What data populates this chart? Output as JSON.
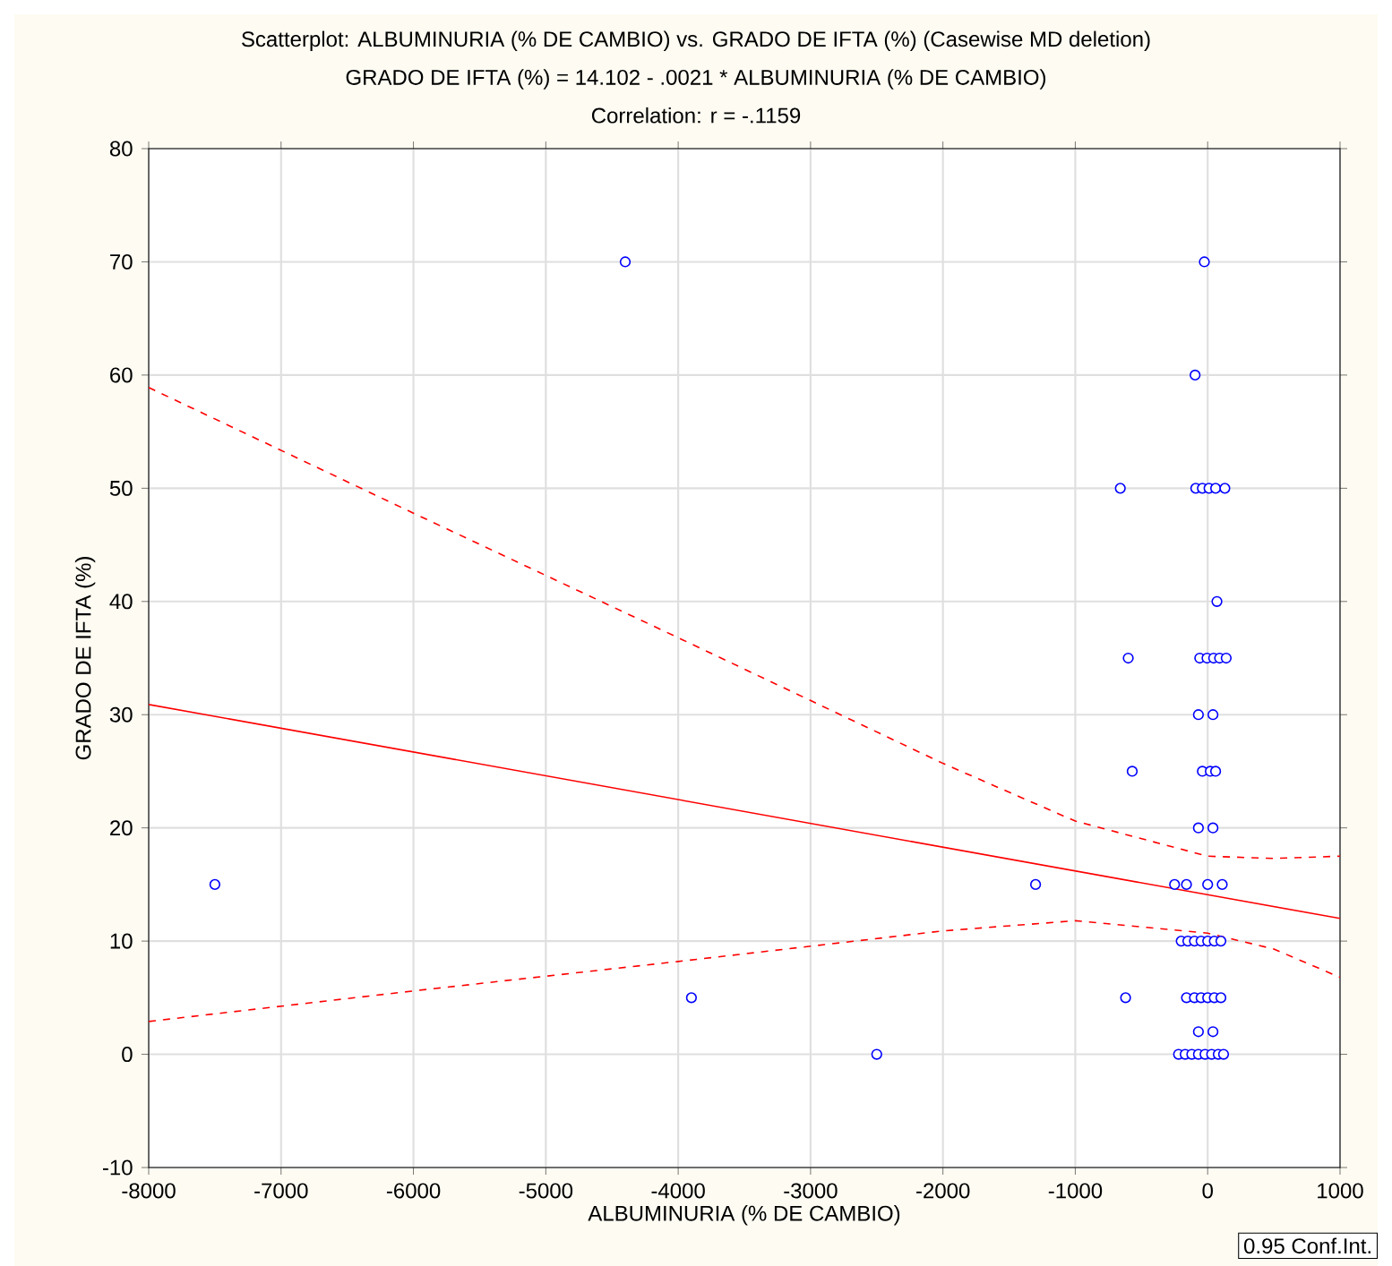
{
  "chart_data": {
    "type": "scatter",
    "title": "Scatterplot: ALBUMINURIA  (% DE CAMBIO) vs. GRADO DE IFTA (%) (Casewise MD deletion)",
    "subtitle": "GRADO DE IFTA (%) = 14.102 - .0021  * ALBUMINURIA  (% DE CAMBIO)",
    "xlabel": "ALBUMINURIA  (% DE CAMBIO)",
    "ylabel": "GRADO DE IFTA (%)",
    "annotations": [
      "Correlation: r = -.1159",
      "0.95 Conf.Int."
    ],
    "xlim": [
      -8000,
      1000
    ],
    "xticks": [
      -8000,
      -7000,
      -6000,
      -5000,
      -4000,
      -3000,
      -2000,
      -1000,
      0,
      1000
    ],
    "ylim": [
      -10,
      80
    ],
    "yticks": [
      -10,
      0,
      10,
      20,
      30,
      40,
      50,
      60,
      70,
      80
    ],
    "grid": true,
    "marker": "circle",
    "series": [
      {
        "color": "#0000ff",
        "x": [
          -7500,
          -4400,
          -3900,
          -2500,
          -1300,
          -25,
          -95,
          -660,
          -90,
          -40,
          10,
          60,
          130,
          70,
          -600,
          -60,
          -5,
          45,
          90,
          140,
          -70,
          40,
          -570,
          -40,
          20,
          60,
          -70,
          40,
          -250,
          -160,
          0,
          110,
          -200,
          -150,
          -100,
          -50,
          0,
          50,
          100,
          -620,
          -160,
          -100,
          -50,
          0,
          50,
          100,
          -70,
          40,
          -220,
          -170,
          -120,
          -70,
          -20,
          30,
          80,
          120
        ],
        "values": [
          15,
          70,
          5,
          0,
          15,
          70,
          60,
          50,
          50,
          50,
          50,
          50,
          50,
          40,
          35,
          35,
          35,
          35,
          35,
          35,
          30,
          30,
          25,
          25,
          25,
          25,
          20,
          20,
          15,
          15,
          15,
          15,
          10,
          10,
          10,
          10,
          10,
          10,
          10,
          5,
          5,
          5,
          5,
          5,
          5,
          5,
          2,
          2,
          0,
          0,
          0,
          0,
          0,
          0,
          0,
          0
        ]
      },
      {
        "type": "line",
        "color": "#ff0000",
        "line_style": "solid",
        "marker": "none",
        "x": [
          -8000,
          1000
        ],
        "values": [
          30.9,
          12.0
        ]
      },
      {
        "type": "line",
        "color": "#ff0000",
        "line_style": "dashed",
        "marker": "none",
        "x": [
          -8000,
          -6000,
          -4000,
          -2000,
          -1000,
          0,
          500,
          1000
        ],
        "values": [
          58.9,
          47.8,
          36.8,
          25.7,
          20.6,
          17.5,
          17.3,
          17.5
        ]
      },
      {
        "type": "line",
        "color": "#ff0000",
        "line_style": "dashed",
        "marker": "none",
        "x": [
          -8000,
          -6000,
          -4000,
          -2000,
          -1000,
          0,
          500,
          1000
        ],
        "values": [
          2.9,
          5.6,
          8.2,
          10.9,
          11.8,
          10.7,
          9.3,
          6.8
        ]
      }
    ]
  }
}
